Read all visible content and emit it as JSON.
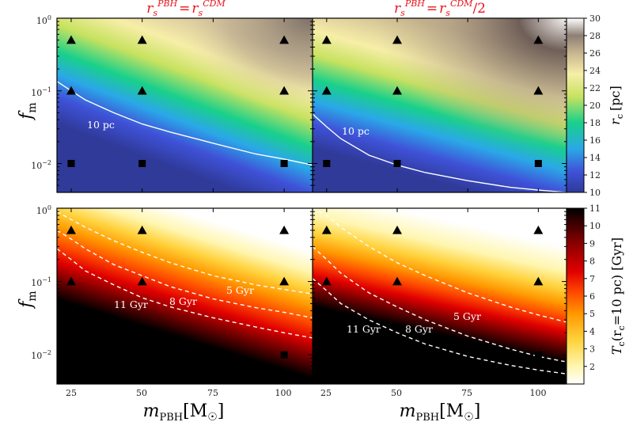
{
  "chart_data": [
    {
      "type": "heatmap",
      "panel": "top-left",
      "title": "r_s^PBH = r_s^CDM",
      "xlabel": "",
      "ylabel": "f_m",
      "yscale": "log",
      "xlim": [
        20,
        110
      ],
      "ylim": [
        0.004,
        1
      ],
      "yticks": [
        "10^-2",
        "10^-1",
        "10^0"
      ],
      "contours": [
        {
          "label": "10 pc",
          "style": "solid",
          "color": "#ffffff",
          "x": [
            20,
            25,
            30,
            40,
            50,
            60,
            75,
            90,
            100,
            110
          ],
          "y": [
            0.135,
            0.1,
            0.075,
            0.05,
            0.035,
            0.027,
            0.019,
            0.0135,
            0.0115,
            0.0095
          ]
        }
      ],
      "markers": [
        {
          "shape": "triangle",
          "x": 25,
          "y": 0.5
        },
        {
          "shape": "triangle",
          "x": 50,
          "y": 0.5
        },
        {
          "shape": "triangle",
          "x": 100,
          "y": 0.5
        },
        {
          "shape": "triangle",
          "x": 25,
          "y": 0.1
        },
        {
          "shape": "triangle",
          "x": 50,
          "y": 0.1
        },
        {
          "shape": "triangle",
          "x": 100,
          "y": 0.1
        },
        {
          "shape": "square",
          "x": 25,
          "y": 0.01
        },
        {
          "shape": "square",
          "x": 50,
          "y": 0.01
        },
        {
          "shape": "square",
          "x": 100,
          "y": 0.01
        }
      ]
    },
    {
      "type": "heatmap",
      "panel": "top-right",
      "title": "r_s^PBH = r_s^CDM/2",
      "xlabel": "",
      "ylabel": "",
      "yscale": "log",
      "xlim": [
        20,
        110
      ],
      "ylim": [
        0.004,
        1
      ],
      "contours": [
        {
          "label": "10 pc",
          "style": "solid",
          "color": "#ffffff",
          "x": [
            20,
            25,
            30,
            40,
            50,
            60,
            75,
            90,
            100,
            110
          ],
          "y": [
            0.048,
            0.032,
            0.022,
            0.013,
            0.0095,
            0.0075,
            0.0058,
            0.0047,
            0.0043,
            0.004
          ]
        }
      ],
      "markers": [
        {
          "shape": "triangle",
          "x": 25,
          "y": 0.5
        },
        {
          "shape": "triangle",
          "x": 50,
          "y": 0.5
        },
        {
          "shape": "triangle",
          "x": 100,
          "y": 0.5
        },
        {
          "shape": "triangle",
          "x": 25,
          "y": 0.1
        },
        {
          "shape": "triangle",
          "x": 50,
          "y": 0.1
        },
        {
          "shape": "triangle",
          "x": 100,
          "y": 0.1
        },
        {
          "shape": "square",
          "x": 25,
          "y": 0.01
        },
        {
          "shape": "square",
          "x": 50,
          "y": 0.01
        },
        {
          "shape": "square",
          "x": 100,
          "y": 0.01
        }
      ]
    },
    {
      "type": "heatmap",
      "panel": "bottom-left",
      "title": "",
      "xlabel": "m_PBH[M_☉]",
      "ylabel": "f_m",
      "yscale": "log",
      "xlim": [
        20,
        110
      ],
      "ylim": [
        0.004,
        1
      ],
      "xticks": [
        25,
        50,
        75,
        100
      ],
      "contours": [
        {
          "label": "5 Gyr",
          "style": "dashed",
          "color": "#ffffff",
          "x": [
            20,
            25,
            30,
            40,
            50,
            60,
            75,
            90,
            100,
            110
          ],
          "y": [
            0.9,
            0.7,
            0.55,
            0.36,
            0.25,
            0.18,
            0.12,
            0.09,
            0.078,
            0.068
          ]
        },
        {
          "label": "8 Gyr",
          "style": "dashed",
          "color": "#ffffff",
          "x": [
            20,
            25,
            30,
            40,
            50,
            60,
            75,
            90,
            100,
            110
          ],
          "y": [
            0.5,
            0.38,
            0.28,
            0.17,
            0.12,
            0.085,
            0.058,
            0.044,
            0.038,
            0.032
          ]
        },
        {
          "label": "11 Gyr",
          "style": "dashed",
          "color": "#ffffff",
          "x": [
            20,
            25,
            30,
            40,
            50,
            60,
            75,
            90,
            100,
            110
          ],
          "y": [
            0.28,
            0.2,
            0.14,
            0.09,
            0.06,
            0.045,
            0.032,
            0.024,
            0.02,
            0.017
          ]
        }
      ],
      "markers": [
        {
          "shape": "triangle",
          "x": 25,
          "y": 0.5
        },
        {
          "shape": "triangle",
          "x": 50,
          "y": 0.5
        },
        {
          "shape": "triangle",
          "x": 100,
          "y": 0.5
        },
        {
          "shape": "triangle",
          "x": 25,
          "y": 0.1
        },
        {
          "shape": "triangle",
          "x": 50,
          "y": 0.1
        },
        {
          "shape": "triangle",
          "x": 100,
          "y": 0.1
        },
        {
          "shape": "square",
          "x": 25,
          "y": 0.01
        },
        {
          "shape": "square",
          "x": 50,
          "y": 0.01
        },
        {
          "shape": "square",
          "x": 100,
          "y": 0.01
        }
      ]
    },
    {
      "type": "heatmap",
      "panel": "bottom-right",
      "title": "",
      "xlabel": "m_PBH[M_☉]",
      "ylabel": "",
      "yscale": "log",
      "xlim": [
        20,
        110
      ],
      "ylim": [
        0.004,
        1
      ],
      "xticks": [
        25,
        50,
        75,
        100
      ],
      "contours": [
        {
          "label": "5 Gyr",
          "style": "dashed",
          "color": "#ffffff",
          "x": [
            20,
            25,
            30,
            40,
            50,
            60,
            75,
            90,
            100,
            110
          ],
          "y": [
            1.0,
            0.8,
            0.55,
            0.3,
            0.18,
            0.12,
            0.07,
            0.045,
            0.035,
            0.028
          ]
        },
        {
          "label": "8 Gyr",
          "style": "dashed",
          "color": "#ffffff",
          "x": [
            20,
            25,
            30,
            40,
            50,
            60,
            75,
            90,
            100,
            110
          ],
          "y": [
            0.3,
            0.2,
            0.13,
            0.07,
            0.045,
            0.03,
            0.018,
            0.012,
            0.0095,
            0.008
          ]
        },
        {
          "label": "11 Gyr",
          "style": "dashed",
          "color": "#ffffff",
          "x": [
            20,
            25,
            30,
            40,
            50,
            60,
            75,
            90,
            100,
            110
          ],
          "y": [
            0.11,
            0.075,
            0.05,
            0.03,
            0.02,
            0.014,
            0.0095,
            0.0072,
            0.0062,
            0.0055
          ]
        }
      ],
      "markers": [
        {
          "shape": "triangle",
          "x": 25,
          "y": 0.5
        },
        {
          "shape": "triangle",
          "x": 50,
          "y": 0.5
        },
        {
          "shape": "triangle",
          "x": 100,
          "y": 0.5
        },
        {
          "shape": "triangle",
          "x": 25,
          "y": 0.1
        },
        {
          "shape": "triangle",
          "x": 50,
          "y": 0.1
        },
        {
          "shape": "triangle",
          "x": 100,
          "y": 0.1
        },
        {
          "shape": "square",
          "x": 25,
          "y": 0.01
        },
        {
          "shape": "square",
          "x": 50,
          "y": 0.01
        },
        {
          "shape": "square",
          "x": 100,
          "y": 0.01
        }
      ]
    }
  ],
  "colorbars": [
    {
      "label": "r_c [pc]",
      "min": 10,
      "max": 30,
      "ticks": [
        10,
        12,
        14,
        16,
        18,
        20,
        22,
        24,
        26,
        28,
        30
      ],
      "colors": [
        "#2f3a99",
        "#3f52d8",
        "#2aa8e8",
        "#19d08a",
        "#c8e260",
        "#f7eea8",
        "#c8b690",
        "#8e7f74",
        "#ffffff"
      ]
    },
    {
      "label": "T_c(r_c = 10 pc) [Gyr]",
      "min": 1,
      "max": 11,
      "ticks": [
        2,
        3,
        4,
        5,
        6,
        7,
        8,
        9,
        10,
        11
      ],
      "colors": [
        "#ffffff",
        "#fff6b0",
        "#ffd23c",
        "#ff9800",
        "#ff4a00",
        "#e00000",
        "#8a0000",
        "#000000"
      ]
    }
  ],
  "text": {
    "title_left_base": "r",
    "title_left_sub": "s",
    "title_left_sup": "PBH",
    "title_left_eq": "=",
    "title_left_rhs": "r",
    "title_left_rhs_sub": "s",
    "title_left_rhs_sup": "CDM",
    "title_right_tail": "/2",
    "ylabel_main": "f",
    "ylabel_sub": "m",
    "xlabel_main": "m",
    "xlabel_sub": "PBH",
    "xlabel_unit": "[M",
    "xlabel_unit_sub": "☉",
    "xlabel_unit_close": "]",
    "cb1_label_main": "r",
    "cb1_label_sub": "c",
    "cb1_label_unit": "[pc]",
    "cb2_label": "T",
    "cb2_label_sub": "c",
    "cb2_label_args": "(r",
    "cb2_label_args_sub": "c",
    "cb2_label_rest": "=10 pc) [Gyr]",
    "ytick_base": "10",
    "ytick_exp_0": "0",
    "ytick_exp_m1": "−1",
    "ytick_exp_m2": "−2",
    "contour_10pc": "10 pc",
    "contour_5gyr": "5 Gyr",
    "contour_8gyr": "8 Gyr",
    "contour_11gyr": "11 Gyr",
    "xtick_25": "25",
    "xtick_50": "50",
    "xtick_75": "75",
    "xtick_100": "100"
  }
}
